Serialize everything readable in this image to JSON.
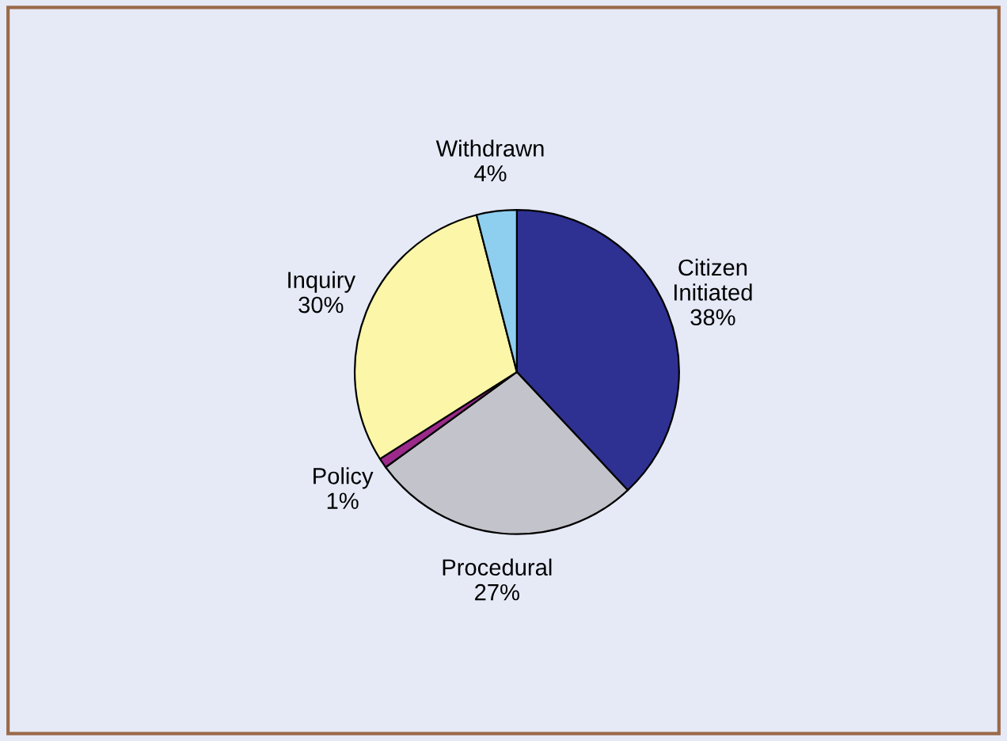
{
  "chart_data": {
    "type": "pie",
    "categories": [
      "Citizen\nInitiated",
      "Procedural",
      "Policy",
      "Inquiry",
      "Withdrawn"
    ],
    "values": [
      38,
      27,
      1,
      30,
      4
    ],
    "value_labels": [
      "38%",
      "27%",
      "1%",
      "30%",
      "4%"
    ],
    "colors": [
      "#2e3192",
      "#c3c3cb",
      "#9b2a8a",
      "#fbf6a8",
      "#8ecff0"
    ],
    "legend": false
  }
}
